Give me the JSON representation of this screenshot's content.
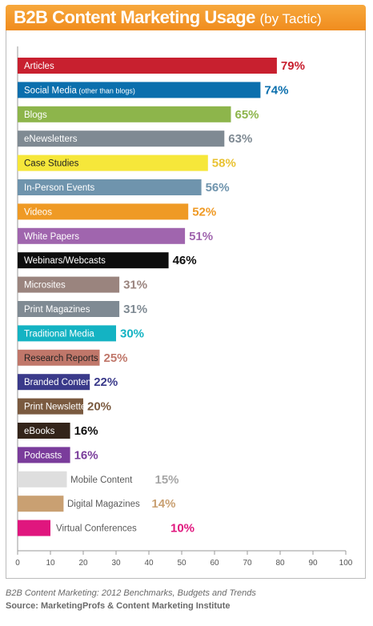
{
  "header": {
    "title": "B2B Content Marketing Usage",
    "subtitle": "(by Tactic)"
  },
  "source": {
    "line1": "B2B Content Marketing: 2012 Benchmarks, Budgets and Trends",
    "line2": "Source: MarketingProfs & Content Marketing Institute"
  },
  "chart_data": {
    "type": "bar",
    "orientation": "horizontal",
    "title": "B2B Content Marketing Usage (by Tactic)",
    "xlim": [
      0,
      100
    ],
    "xticks": [
      0,
      10,
      20,
      30,
      40,
      50,
      60,
      70,
      80,
      90,
      100
    ],
    "grid": false,
    "value_suffix": "%",
    "categories": [
      "Articles",
      "Social Media",
      "Blogs",
      "eNewsletters",
      "Case Studies",
      "In-Person Events",
      "Videos",
      "White Papers",
      "Webinars/Webcasts",
      "Microsites",
      "Print Magazines",
      "Traditional Media",
      "Research Reports",
      "Branded Content Tools",
      "Print Newsletters",
      "eBooks",
      "Podcasts",
      "Mobile Content",
      "Digital Magazines",
      "Virtual Conferences"
    ],
    "category_notes": [
      "",
      "(other than blogs)",
      "",
      "",
      "",
      "",
      "",
      "",
      "",
      "",
      "",
      "",
      "",
      "",
      "",
      "",
      "",
      "",
      "",
      ""
    ],
    "values": [
      79,
      74,
      65,
      63,
      58,
      56,
      52,
      51,
      46,
      31,
      31,
      30,
      25,
      22,
      20,
      16,
      16,
      15,
      14,
      10
    ],
    "bar_colors": [
      "#c8202f",
      "#0b6fad",
      "#8db54b",
      "#7f8a93",
      "#f6e73a",
      "#6f94ad",
      "#ef9a25",
      "#a065ae",
      "#0d0d0d",
      "#9a847e",
      "#7f8a93",
      "#14b3c3",
      "#c0776a",
      "#3a3a8a",
      "#7a5a3f",
      "#33241a",
      "#7a3c9b",
      "#dedede",
      "#c9a072",
      "#e0167e"
    ],
    "label_colors": [
      "#ffffff",
      "#ffffff",
      "#ffffff",
      "#ffffff",
      "#222222",
      "#ffffff",
      "#ffffff",
      "#ffffff",
      "#ffffff",
      "#ffffff",
      "#ffffff",
      "#ffffff",
      "#222222",
      "#ffffff",
      "#ffffff",
      "#ffffff",
      "#ffffff",
      "#6a6a6a",
      "#333333",
      "#4a4a4a"
    ],
    "value_colors": [
      "#c8202f",
      "#0b6fad",
      "#8db54b",
      "#7f8a93",
      "#e9c232",
      "#6f94ad",
      "#ef9a25",
      "#a065ae",
      "#0d0d0d",
      "#9a847e",
      "#7f8a93",
      "#14b3c3",
      "#c0776a",
      "#3a3a8a",
      "#7a5a3f",
      "#0d0d0d",
      "#7a3c9b",
      "#a6a6a6",
      "#c9a072",
      "#e0167e"
    ]
  }
}
